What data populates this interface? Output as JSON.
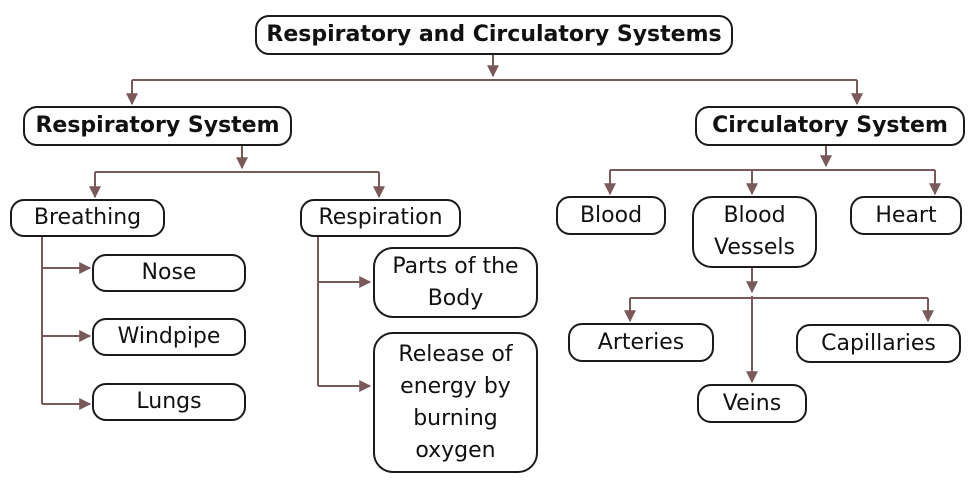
{
  "title": "Respiratory and Circulatory Systems",
  "respiratory": {
    "label": "Respiratory System",
    "breathing": {
      "label": "Breathing",
      "items": [
        "Nose",
        "Windpipe",
        "Lungs"
      ]
    },
    "respiration": {
      "label": "Respiration",
      "items": [
        "Parts of the\nBody",
        "Release of\nenergy by\nburning\noxygen"
      ]
    }
  },
  "circulatory": {
    "label": "Circulatory System",
    "items": [
      "Blood",
      "Blood\nVessels",
      "Heart"
    ],
    "vessels": [
      "Arteries",
      "Veins",
      "Capillaries"
    ]
  },
  "colors": {
    "connector": "#7a5a58",
    "border": "#1a1a1a",
    "text": "#111111"
  }
}
